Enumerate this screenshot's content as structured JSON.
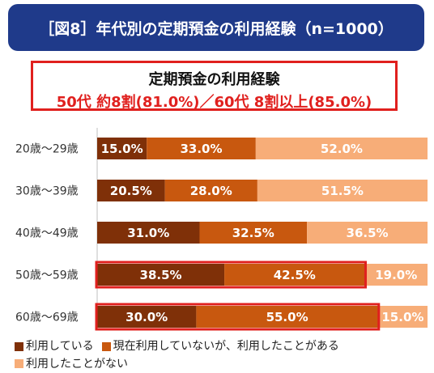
{
  "title": "［図8］年代別の定期預金の利用経験（n=1000）",
  "callout": {
    "line1": "定期預金の利用経験",
    "line2": "50代 約8割(81.0%)／60代 8割以上(85.0%)"
  },
  "colors": {
    "title_bg": "#1f3a8a",
    "highlight": "#e0201e",
    "series": [
      "#7f3008",
      "#c8580f",
      "#f7ad78"
    ]
  },
  "chart_data": {
    "type": "bar",
    "orientation": "horizontal",
    "stacked": true,
    "percent_stacked": true,
    "categories": [
      "20歳～29歳",
      "30歳～39歳",
      "40歳～49歳",
      "50歳～59歳",
      "60歳～69歳"
    ],
    "series": [
      {
        "name": "利用している",
        "values": [
          15.0,
          20.5,
          31.0,
          38.5,
          30.0
        ],
        "labels": [
          "15.0%",
          "20.5%",
          "31.0%",
          "38.5%",
          "30.0%"
        ]
      },
      {
        "name": "現在利用していないが、利用したことがある",
        "values": [
          33.0,
          28.0,
          32.5,
          42.5,
          55.0
        ],
        "labels": [
          "33.0%",
          "28.0%",
          "32.5%",
          "42.5%",
          "55.0%"
        ]
      },
      {
        "name": "利用したことがない",
        "values": [
          52.0,
          51.5,
          36.5,
          19.0,
          15.0
        ],
        "labels": [
          "52.0%",
          "51.5%",
          "36.5%",
          "19.0%",
          "15.0%"
        ]
      }
    ],
    "highlighted_categories": [
      "50歳～59歳",
      "60歳～69歳"
    ],
    "xlim": [
      0,
      100
    ],
    "legend_position": "bottom"
  }
}
